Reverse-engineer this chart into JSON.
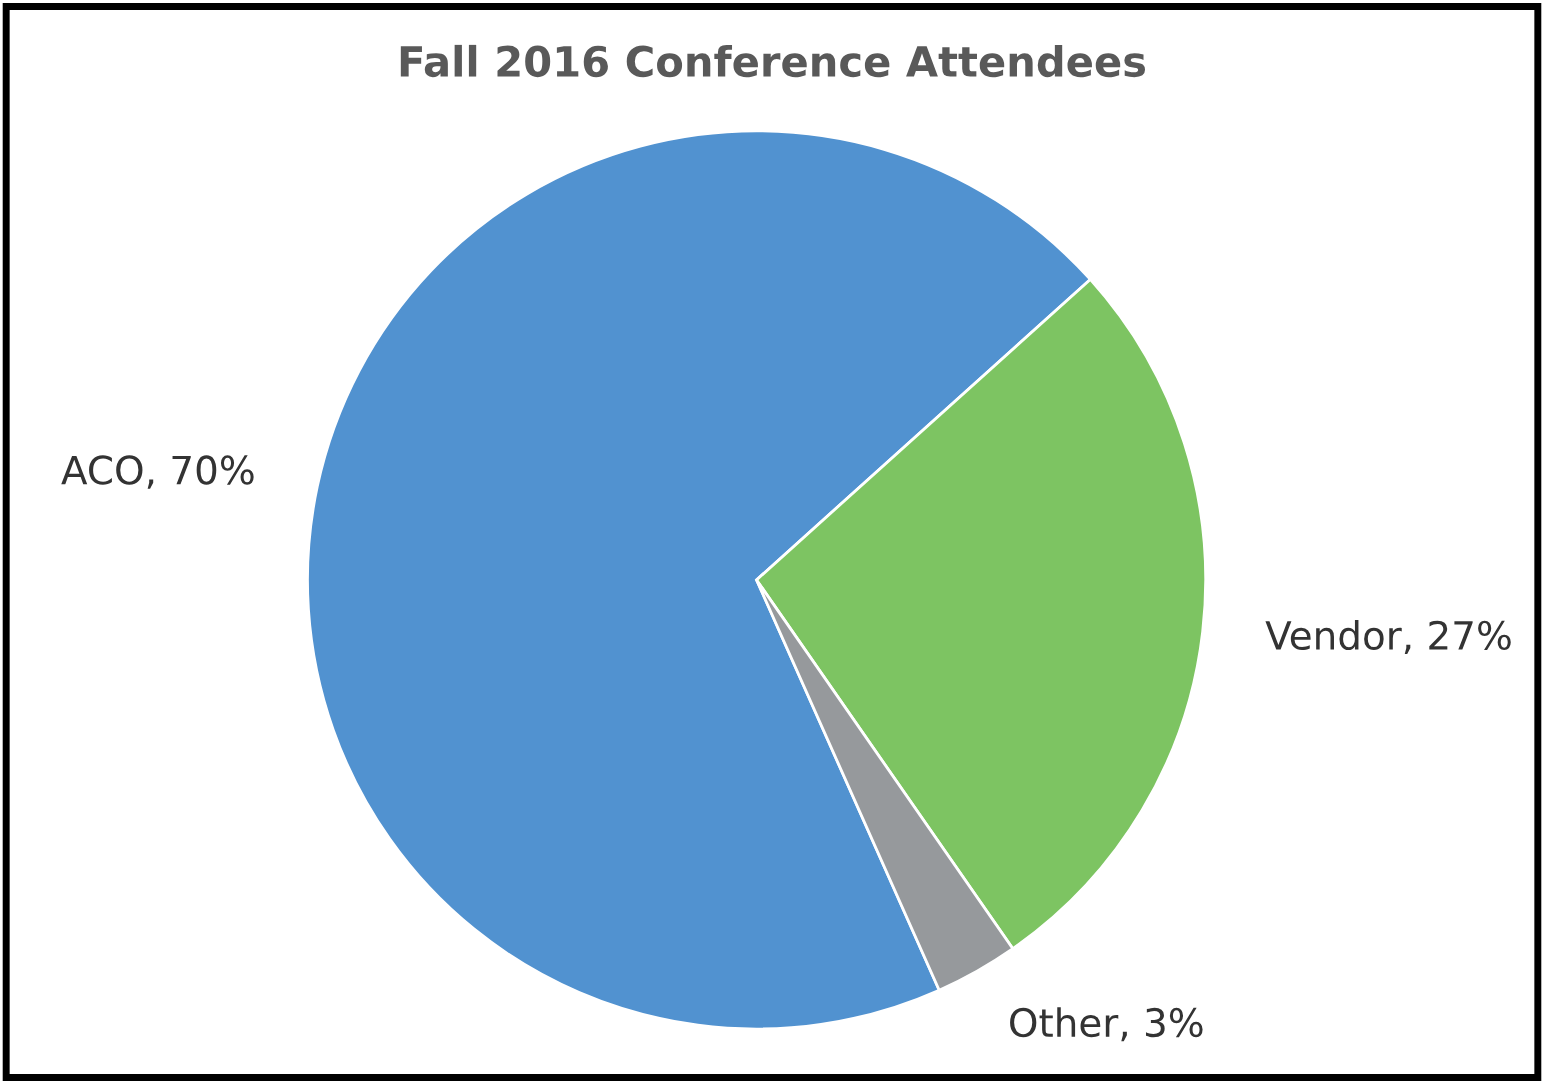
{
  "chart_data": {
    "type": "pie",
    "title": "Fall 2016 Conference Attendees",
    "categories": [
      "ACO",
      "Vendor",
      "Other"
    ],
    "values": [
      70,
      27,
      3
    ],
    "value_labels": [
      "70%",
      "27%",
      "3%"
    ],
    "colors": [
      "#5192d0",
      "#7dc462",
      "#96999c"
    ],
    "legend": false
  }
}
